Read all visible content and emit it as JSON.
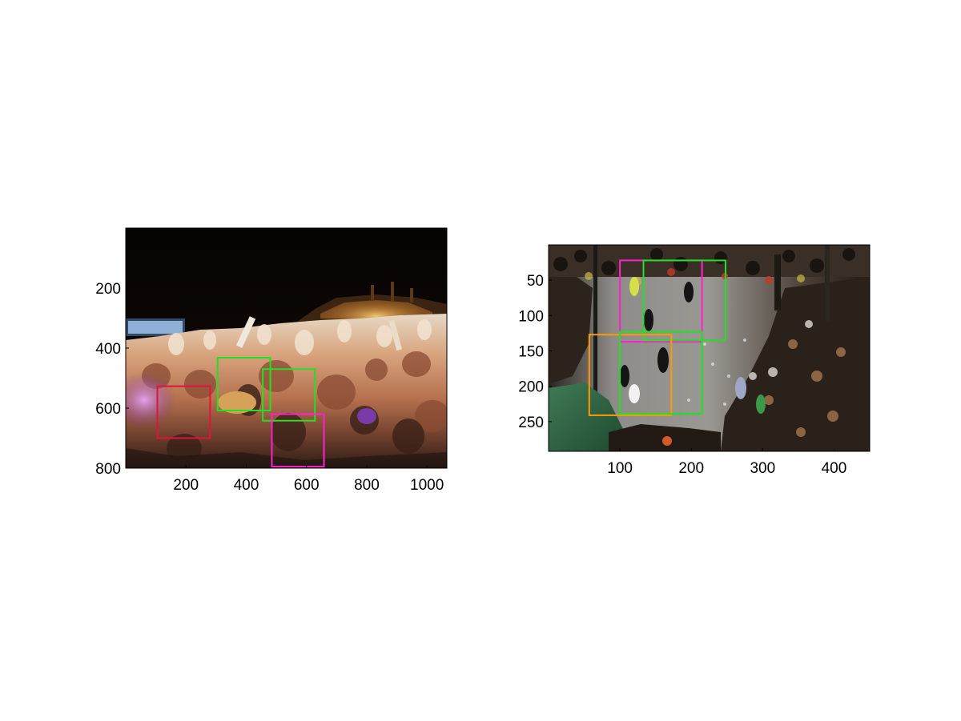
{
  "chart_data": [
    {
      "type": "image",
      "image": "concert-crowd-night",
      "xlim": [
        0,
        1066
      ],
      "ylim": [
        800,
        0
      ],
      "xticks": [
        200,
        400,
        600,
        800,
        1000
      ],
      "yticks": [
        200,
        400,
        600,
        800
      ],
      "boxes": [
        {
          "x0": 105,
          "y0": 527,
          "x1": 280,
          "y1": 700,
          "color": "#e0143c"
        },
        {
          "x0": 305,
          "y0": 432,
          "x1": 480,
          "y1": 608,
          "color": "#22e022"
        },
        {
          "x0": 455,
          "y0": 470,
          "x1": 628,
          "y1": 642,
          "color": "#22e022"
        },
        {
          "x0": 485,
          "y0": 620,
          "x1": 658,
          "y1": 795,
          "color": "#ff22cc"
        }
      ]
    },
    {
      "type": "image",
      "image": "street-carnival-crowd",
      "xlim": [
        0,
        450
      ],
      "ylim": [
        292,
        0
      ],
      "xticks": [
        100,
        200,
        300,
        400
      ],
      "yticks": [
        50,
        100,
        150,
        200,
        250
      ],
      "boxes": [
        {
          "x0": 100,
          "y0": 22,
          "x1": 215,
          "y1": 137,
          "color": "#ff22cc"
        },
        {
          "x0": 133,
          "y0": 22,
          "x1": 248,
          "y1": 135,
          "color": "#22e022"
        },
        {
          "x0": 57,
          "y0": 127,
          "x1": 172,
          "y1": 241,
          "color": "#ff9900"
        },
        {
          "x0": 100,
          "y0": 123,
          "x1": 215,
          "y1": 239,
          "color": "#22e022"
        }
      ]
    }
  ]
}
